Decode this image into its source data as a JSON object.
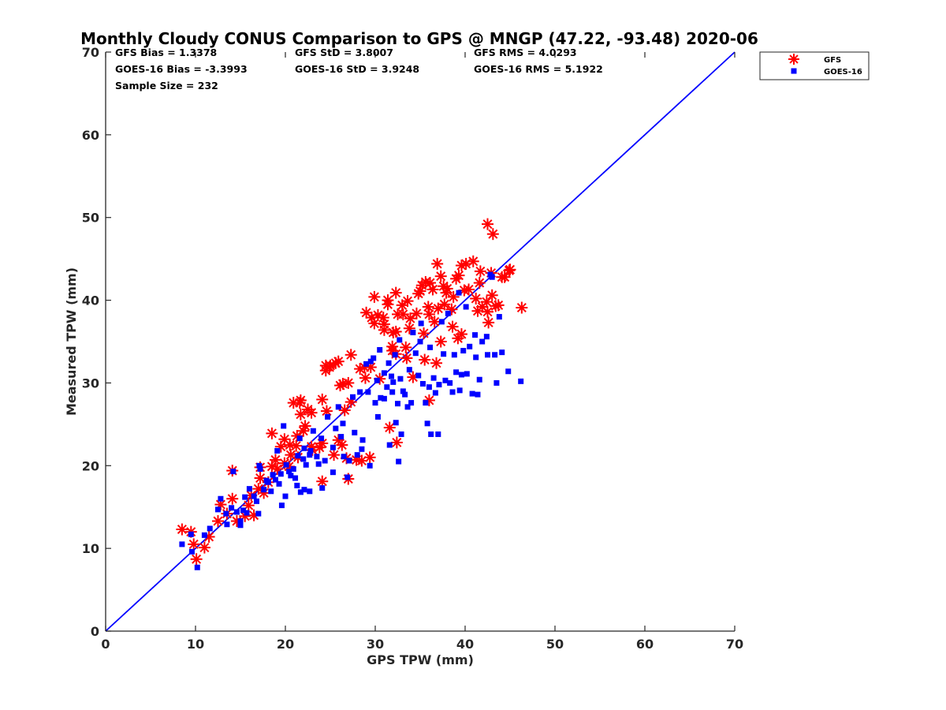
{
  "chart_data": {
    "type": "scatter",
    "title": "Monthly Cloudy CONUS Comparison to GPS @ MNGP (47.22, -93.48) 2020-06",
    "xlabel": "GPS TPW (mm)",
    "ylabel": "Measured TPW (mm)",
    "xlim": [
      0,
      70
    ],
    "ylim": [
      0,
      70
    ],
    "xticks": [
      "0",
      "10",
      "20",
      "30",
      "40",
      "50",
      "60",
      "70"
    ],
    "yticks": [
      "0",
      "10",
      "20",
      "30",
      "40",
      "50",
      "60",
      "70"
    ],
    "grid": false,
    "legend_position": "top-right",
    "stats": [
      "GFS Bias = 1.3378",
      "GOES-16 Bias = -3.3993",
      "Sample Size = 232",
      "GFS StD = 3.8007",
      "GOES-16 StD = 3.9248",
      "GFS RMS = 4.0293",
      "GOES-16 RMS = 5.1922"
    ],
    "reference_line": {
      "x": [
        0,
        70
      ],
      "y": [
        0,
        70
      ],
      "color": "#0000ff"
    },
    "series": [
      {
        "name": "GFS",
        "marker": "asterisk",
        "color": "#ff0000",
        "points": [
          [
            8.5,
            12.3
          ],
          [
            9.5,
            12.0
          ],
          [
            9.8,
            10.5
          ],
          [
            10.1,
            8.7
          ],
          [
            11.0,
            10.1
          ],
          [
            11.5,
            11.4
          ],
          [
            12.5,
            13.3
          ],
          [
            12.8,
            15.3
          ],
          [
            13.5,
            14.2
          ],
          [
            14.1,
            16.0
          ],
          [
            14.1,
            19.4
          ],
          [
            14.6,
            13.3
          ],
          [
            15.5,
            13.9
          ],
          [
            15.9,
            15.2
          ],
          [
            16.2,
            16.4
          ],
          [
            16.5,
            14.0
          ],
          [
            17.0,
            17.2
          ],
          [
            17.2,
            18.5
          ],
          [
            17.2,
            19.8
          ],
          [
            17.6,
            16.7
          ],
          [
            18.1,
            18.0
          ],
          [
            18.5,
            19.9
          ],
          [
            18.5,
            23.9
          ],
          [
            18.9,
            20.7
          ],
          [
            19.1,
            19.6
          ],
          [
            19.5,
            22.3
          ],
          [
            19.9,
            20.3
          ],
          [
            19.9,
            23.2
          ],
          [
            20.4,
            19.9
          ],
          [
            20.5,
            22.5
          ],
          [
            20.6,
            21.3
          ],
          [
            20.9,
            27.6
          ],
          [
            21.2,
            22.4
          ],
          [
            21.3,
            23.6
          ],
          [
            21.4,
            21.0
          ],
          [
            21.6,
            27.6
          ],
          [
            21.7,
            27.9
          ],
          [
            21.7,
            26.2
          ],
          [
            22.0,
            24.2
          ],
          [
            22.2,
            24.8
          ],
          [
            22.5,
            26.8
          ],
          [
            22.9,
            26.4
          ],
          [
            22.9,
            22.3
          ],
          [
            23.0,
            21.9
          ],
          [
            23.8,
            22.2
          ],
          [
            24.1,
            18.1
          ],
          [
            24.1,
            22.7
          ],
          [
            24.1,
            28.0
          ],
          [
            24.5,
            31.5
          ],
          [
            24.5,
            32.1
          ],
          [
            24.6,
            26.6
          ],
          [
            24.9,
            31.9
          ],
          [
            25.0,
            32.1
          ],
          [
            25.4,
            21.3
          ],
          [
            25.6,
            32.4
          ],
          [
            25.9,
            32.6
          ],
          [
            25.9,
            23.1
          ],
          [
            26.1,
            29.7
          ],
          [
            26.3,
            22.5
          ],
          [
            26.4,
            29.9
          ],
          [
            26.6,
            26.7
          ],
          [
            26.8,
            20.9
          ],
          [
            27.0,
            30.0
          ],
          [
            27.0,
            18.4
          ],
          [
            27.3,
            33.4
          ],
          [
            27.3,
            27.7
          ],
          [
            27.9,
            20.7
          ],
          [
            28.3,
            31.7
          ],
          [
            28.5,
            20.6
          ],
          [
            28.8,
            31.9
          ],
          [
            28.9,
            30.6
          ],
          [
            29.0,
            38.5
          ],
          [
            29.4,
            21.0
          ],
          [
            29.5,
            31.9
          ],
          [
            29.6,
            37.9
          ],
          [
            29.9,
            37.2
          ],
          [
            29.9,
            40.4
          ],
          [
            30.3,
            38.2
          ],
          [
            30.5,
            30.5
          ],
          [
            30.9,
            37.9
          ],
          [
            31.0,
            36.4
          ],
          [
            31.0,
            37.1
          ],
          [
            31.4,
            39.5
          ],
          [
            31.4,
            40.0
          ],
          [
            31.6,
            24.6
          ],
          [
            31.9,
            33.9
          ],
          [
            31.9,
            34.4
          ],
          [
            32.0,
            36.1
          ],
          [
            32.3,
            36.2
          ],
          [
            32.3,
            40.9
          ],
          [
            32.3,
            33.5
          ],
          [
            32.4,
            22.8
          ],
          [
            32.5,
            38.3
          ],
          [
            33.0,
            39.4
          ],
          [
            33.1,
            38.3
          ],
          [
            33.4,
            34.3
          ],
          [
            33.5,
            33.0
          ],
          [
            33.6,
            39.9
          ],
          [
            33.8,
            36.6
          ],
          [
            33.9,
            37.8
          ],
          [
            34.2,
            30.7
          ],
          [
            34.6,
            38.4
          ],
          [
            34.8,
            40.8
          ],
          [
            35.0,
            41.1
          ],
          [
            35.2,
            41.8
          ],
          [
            35.4,
            36.0
          ],
          [
            35.5,
            32.8
          ],
          [
            35.6,
            42.2
          ],
          [
            35.9,
            39.2
          ],
          [
            36.0,
            38.3
          ],
          [
            36.0,
            27.9
          ],
          [
            36.1,
            42.1
          ],
          [
            36.4,
            41.3
          ],
          [
            36.6,
            37.4
          ],
          [
            36.8,
            32.4
          ],
          [
            36.9,
            44.4
          ],
          [
            37.0,
            39.0
          ],
          [
            37.3,
            42.9
          ],
          [
            37.3,
            35.0
          ],
          [
            37.6,
            41.7
          ],
          [
            37.7,
            39.5
          ],
          [
            37.9,
            40.9
          ],
          [
            38.0,
            41.4
          ],
          [
            38.5,
            38.9
          ],
          [
            38.6,
            36.8
          ],
          [
            38.7,
            40.4
          ],
          [
            39.0,
            42.6
          ],
          [
            39.2,
            35.4
          ],
          [
            39.3,
            43.0
          ],
          [
            39.6,
            44.2
          ],
          [
            39.6,
            35.9
          ],
          [
            39.9,
            41.2
          ],
          [
            40.1,
            44.4
          ],
          [
            40.4,
            41.3
          ],
          [
            40.9,
            44.7
          ],
          [
            41.2,
            40.2
          ],
          [
            41.4,
            38.7
          ],
          [
            41.6,
            42.1
          ],
          [
            41.7,
            43.5
          ],
          [
            41.9,
            39.2
          ],
          [
            42.4,
            39.8
          ],
          [
            42.5,
            49.2
          ],
          [
            42.5,
            38.6
          ],
          [
            42.6,
            37.3
          ],
          [
            42.9,
            43.3
          ],
          [
            43.0,
            40.6
          ],
          [
            43.1,
            48.0
          ],
          [
            43.4,
            39.3
          ],
          [
            43.7,
            39.4
          ],
          [
            44.1,
            42.8
          ],
          [
            44.4,
            42.8
          ],
          [
            44.9,
            43.6
          ],
          [
            45.0,
            43.7
          ],
          [
            46.3,
            39.1
          ]
        ]
      },
      {
        "name": "GOES-16",
        "marker": "square",
        "color": "#0000ff",
        "points": [
          [
            8.5,
            10.5
          ],
          [
            9.5,
            11.7
          ],
          [
            9.6,
            9.6
          ],
          [
            10.2,
            7.7
          ],
          [
            11.0,
            11.6
          ],
          [
            11.6,
            12.4
          ],
          [
            12.5,
            14.7
          ],
          [
            12.8,
            16.0
          ],
          [
            13.4,
            14.2
          ],
          [
            13.5,
            12.9
          ],
          [
            14.0,
            14.9
          ],
          [
            14.2,
            19.3
          ],
          [
            14.6,
            14.4
          ],
          [
            15.0,
            13.3
          ],
          [
            15.0,
            12.8
          ],
          [
            15.3,
            14.6
          ],
          [
            15.5,
            16.2
          ],
          [
            15.7,
            14.3
          ],
          [
            16.0,
            17.2
          ],
          [
            16.5,
            16.3
          ],
          [
            16.8,
            15.7
          ],
          [
            17.0,
            14.2
          ],
          [
            17.1,
            20.0
          ],
          [
            17.2,
            19.6
          ],
          [
            17.6,
            17.1
          ],
          [
            17.9,
            18.2
          ],
          [
            18.1,
            18.0
          ],
          [
            18.4,
            16.9
          ],
          [
            18.6,
            18.9
          ],
          [
            18.9,
            18.3
          ],
          [
            19.1,
            21.8
          ],
          [
            19.3,
            17.8
          ],
          [
            19.5,
            19.0
          ],
          [
            19.6,
            15.2
          ],
          [
            19.8,
            24.8
          ],
          [
            20.0,
            16.3
          ],
          [
            20.1,
            20.1
          ],
          [
            20.4,
            19.3
          ],
          [
            20.6,
            18.8
          ],
          [
            20.9,
            19.6
          ],
          [
            21.1,
            18.5
          ],
          [
            21.3,
            17.6
          ],
          [
            21.4,
            21.2
          ],
          [
            21.6,
            23.3
          ],
          [
            21.7,
            16.8
          ],
          [
            22.0,
            20.8
          ],
          [
            22.1,
            17.1
          ],
          [
            22.1,
            22.1
          ],
          [
            22.3,
            20.1
          ],
          [
            22.7,
            21.3
          ],
          [
            22.7,
            16.9
          ],
          [
            22.8,
            21.8
          ],
          [
            23.1,
            24.2
          ],
          [
            23.5,
            21.1
          ],
          [
            23.7,
            20.2
          ],
          [
            24.0,
            23.3
          ],
          [
            24.1,
            17.3
          ],
          [
            24.4,
            20.6
          ],
          [
            24.7,
            25.9
          ],
          [
            25.3,
            19.2
          ],
          [
            25.3,
            22.2
          ],
          [
            25.6,
            24.5
          ],
          [
            25.9,
            27.1
          ],
          [
            26.2,
            23.5
          ],
          [
            26.4,
            25.1
          ],
          [
            26.5,
            21.1
          ],
          [
            26.9,
            18.6
          ],
          [
            27.1,
            20.6
          ],
          [
            27.5,
            28.3
          ],
          [
            27.7,
            24.0
          ],
          [
            28.0,
            21.3
          ],
          [
            28.3,
            28.9
          ],
          [
            28.5,
            22.0
          ],
          [
            28.6,
            23.1
          ],
          [
            29.0,
            32.3
          ],
          [
            29.2,
            28.9
          ],
          [
            29.4,
            20.0
          ],
          [
            29.5,
            32.6
          ],
          [
            29.8,
            33.0
          ],
          [
            30.0,
            27.6
          ],
          [
            30.2,
            30.3
          ],
          [
            30.3,
            25.9
          ],
          [
            30.5,
            34.0
          ],
          [
            30.6,
            28.2
          ],
          [
            31.0,
            28.1
          ],
          [
            31.0,
            31.2
          ],
          [
            31.3,
            29.5
          ],
          [
            31.5,
            32.4
          ],
          [
            31.6,
            22.5
          ],
          [
            31.8,
            30.8
          ],
          [
            31.9,
            28.9
          ],
          [
            32.0,
            30.1
          ],
          [
            32.2,
            33.4
          ],
          [
            32.3,
            25.2
          ],
          [
            32.5,
            27.5
          ],
          [
            32.6,
            20.5
          ],
          [
            32.7,
            35.2
          ],
          [
            32.8,
            30.5
          ],
          [
            32.9,
            23.8
          ],
          [
            33.1,
            29.0
          ],
          [
            33.3,
            28.6
          ],
          [
            33.6,
            27.1
          ],
          [
            33.8,
            31.6
          ],
          [
            34.0,
            27.6
          ],
          [
            34.2,
            36.1
          ],
          [
            34.5,
            33.6
          ],
          [
            34.8,
            30.9
          ],
          [
            35.0,
            35.0
          ],
          [
            35.1,
            37.2
          ],
          [
            35.3,
            29.9
          ],
          [
            35.6,
            27.6
          ],
          [
            35.8,
            25.1
          ],
          [
            36.0,
            29.5
          ],
          [
            36.1,
            34.3
          ],
          [
            36.2,
            23.8
          ],
          [
            36.5,
            30.6
          ],
          [
            36.7,
            28.8
          ],
          [
            37.0,
            23.8
          ],
          [
            37.1,
            29.8
          ],
          [
            37.4,
            37.4
          ],
          [
            37.6,
            33.5
          ],
          [
            37.8,
            30.3
          ],
          [
            38.1,
            38.4
          ],
          [
            38.3,
            30.0
          ],
          [
            38.6,
            28.9
          ],
          [
            38.8,
            33.4
          ],
          [
            39.0,
            31.3
          ],
          [
            39.3,
            40.9
          ],
          [
            39.4,
            29.1
          ],
          [
            39.6,
            31.0
          ],
          [
            39.8,
            33.9
          ],
          [
            40.1,
            39.2
          ],
          [
            40.2,
            31.1
          ],
          [
            40.5,
            34.4
          ],
          [
            40.8,
            28.7
          ],
          [
            41.1,
            35.8
          ],
          [
            41.2,
            33.1
          ],
          [
            41.4,
            28.6
          ],
          [
            41.6,
            30.4
          ],
          [
            41.9,
            35.0
          ],
          [
            42.4,
            35.6
          ],
          [
            42.5,
            33.4
          ],
          [
            42.8,
            43.1
          ],
          [
            43.0,
            42.8
          ],
          [
            43.3,
            33.4
          ],
          [
            43.5,
            30.0
          ],
          [
            43.8,
            38.0
          ],
          [
            44.1,
            33.7
          ],
          [
            44.8,
            31.4
          ],
          [
            46.2,
            30.2
          ]
        ]
      }
    ]
  }
}
